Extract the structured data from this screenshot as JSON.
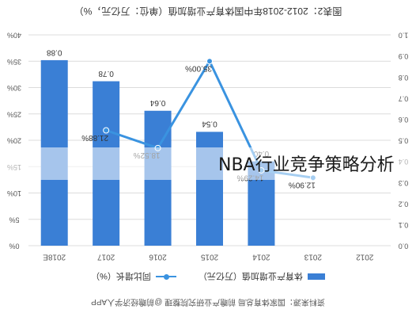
{
  "title": "图表2：2012-2018年中国体育产业增加值（单位：万亿元，%）",
  "overlay_text": "NBA行业竞争策略分析",
  "source": "资料来源：国家体育总局 前瞻产业研究院整理    @前瞻经济学人APP",
  "legend": {
    "bar": "体育产业增加值（万亿元）",
    "line": "同比增长（%）"
  },
  "colors": {
    "bar": "#3a7fd5",
    "line": "#3a93e0",
    "grid": "#dcdcdc",
    "axis_text": "#555555"
  },
  "chart_data": {
    "type": "bar",
    "categories": [
      "2018E",
      "2017",
      "2016",
      "2015",
      "2014",
      "2013",
      "2012"
    ],
    "series": [
      {
        "name": "体育产业增加值（万亿元）",
        "type": "bar",
        "values": [
          0.88,
          0.78,
          0.64,
          0.54,
          0.4,
          null,
          null
        ],
        "labels": [
          "0.88",
          "0.78",
          "0.64",
          "0.54",
          "0.40",
          "",
          ""
        ]
      },
      {
        "name": "同比增长（%）",
        "type": "line",
        "values": [
          null,
          21.88,
          18.52,
          35.0,
          14.29,
          12.9,
          null
        ],
        "labels": [
          "",
          "21.88%",
          "18.52%",
          "35.00%",
          "14.29%",
          "12.90%",
          ""
        ]
      }
    ],
    "left_ticks": [
      "40%",
      "35%",
      "30%",
      "25%",
      "20%",
      "15%",
      "10%",
      "5%",
      "0%"
    ],
    "right_ticks": [
      "1.0",
      "0.9",
      "0.8",
      "0.7",
      "0.6",
      "0.5",
      "0.4",
      "0.3",
      "0.2",
      "0.1",
      "0.0"
    ],
    "ylim_left": [
      0,
      40
    ],
    "ylim_right": [
      0,
      1.0
    ],
    "grid": true,
    "legend_position": "bottom"
  }
}
